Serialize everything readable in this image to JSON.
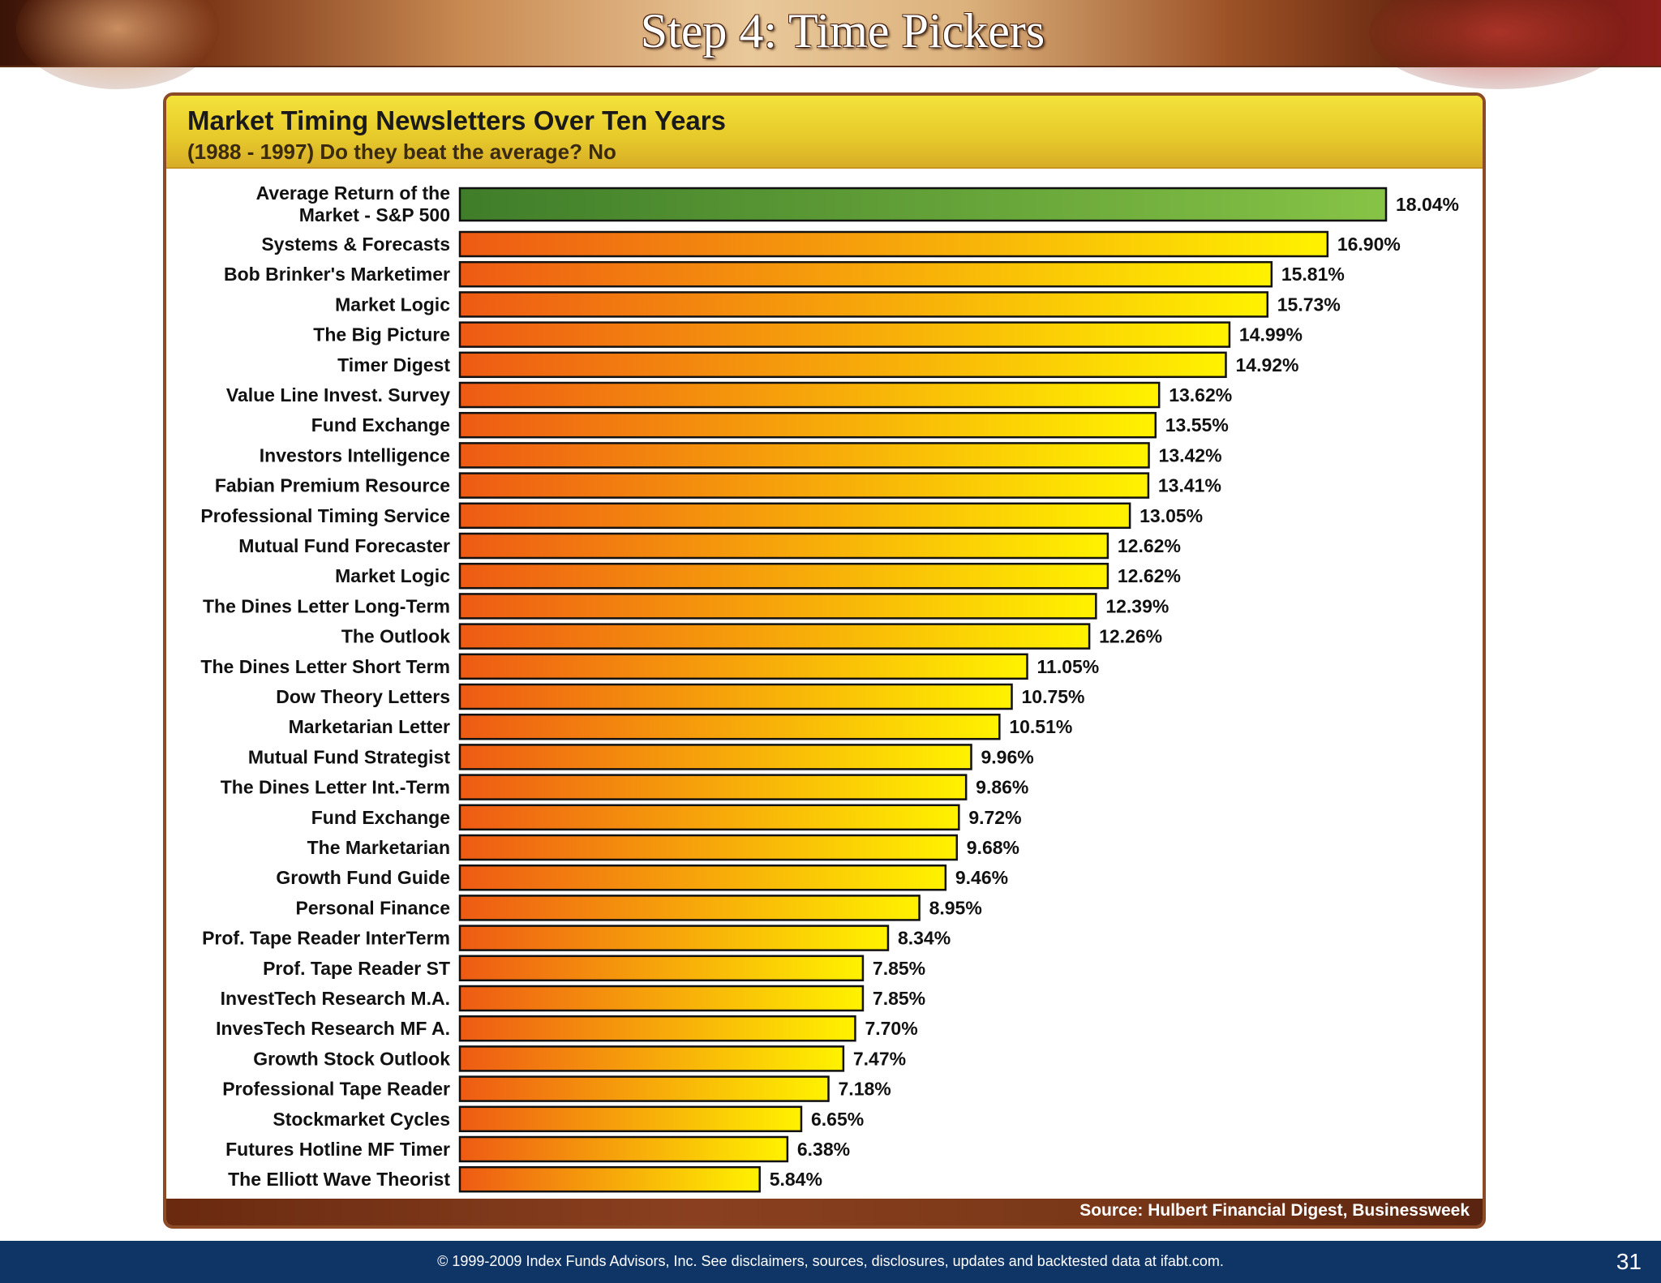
{
  "slide": {
    "title": "Step 4: Time Pickers",
    "copyright": "© 1999-2009 Index Funds Advisors, Inc. See disclaimers, sources, disclosures, updates and backtested data at ifabt.com.",
    "page_number": "31"
  },
  "chart_data": {
    "type": "bar",
    "orientation": "horizontal",
    "title": "Market Timing Newsletters Over Ten Years",
    "subtitle": "(1988 - 1997)  Do they beat the average?  No",
    "source": "Source:  Hulbert Financial Digest, Businessweek",
    "xlim": [
      0,
      18.04
    ],
    "categories": [
      "Average Return of the Market - S&P 500",
      "Systems & Forecasts",
      "Bob Brinker's Marketimer",
      "Market Logic",
      "The Big Picture",
      "Timer Digest",
      "Value Line Invest. Survey",
      "Fund Exchange",
      "Investors Intelligence",
      "Fabian Premium Resource",
      "Professional Timing Service",
      "Mutual Fund Forecaster",
      "Market Logic",
      "The Dines Letter Long-Term",
      "The Outlook",
      "The Dines Letter Short Term",
      "Dow Theory Letters",
      "Marketarian Letter",
      "Mutual Fund Strategist",
      "The Dines Letter Int.-Term",
      "Fund Exchange",
      "The Marketarian",
      "Growth Fund Guide",
      "Personal Finance",
      "Prof. Tape Reader InterTerm",
      "Prof. Tape Reader ST",
      "InvestTech Research M.A.",
      "InvesTech Research MF A.",
      "Growth Stock Outlook",
      "Professional Tape Reader",
      "Stockmarket Cycles",
      "Futures Hotline MF Timer",
      "The Elliott Wave Theorist"
    ],
    "values": [
      18.04,
      16.9,
      15.81,
      15.73,
      14.99,
      14.92,
      13.62,
      13.55,
      13.42,
      13.41,
      13.05,
      12.62,
      12.62,
      12.39,
      12.26,
      11.05,
      10.75,
      10.51,
      9.96,
      9.86,
      9.72,
      9.68,
      9.46,
      8.95,
      8.34,
      7.85,
      7.85,
      7.7,
      7.47,
      7.18,
      6.65,
      6.38,
      5.84
    ],
    "value_labels": [
      "18.04%",
      "16.90%",
      "15.81%",
      "15.73%",
      "14.99%",
      "14.92%",
      "13.62%",
      "13.55%",
      "13.42%",
      "13.41%",
      "13.05%",
      "12.62%",
      "12.62%",
      "12.39%",
      "12.26%",
      "11.05%",
      "10.75%",
      "10.51%",
      "9.96%",
      "9.86%",
      "9.72%",
      "9.68%",
      "9.46%",
      "8.95%",
      "8.34%",
      "7.85%",
      "7.85%",
      "7.70%",
      "7.47%",
      "7.18%",
      "6.65%",
      "6.38%",
      "5.84%"
    ],
    "grid": false,
    "legend": "none",
    "colors": {
      "benchmark_dark": "#3f7d2a",
      "benchmark_light": "#86c346",
      "bar_dark": "#ee5a14",
      "bar_light": "#fff200",
      "bar_outline": "#111111"
    }
  }
}
